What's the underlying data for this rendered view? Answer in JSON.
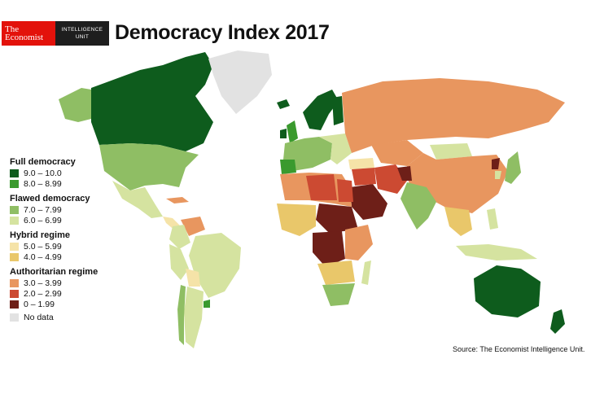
{
  "logo": {
    "brand_line1": "The",
    "brand_line2": "Economist",
    "unit_line1": "INTELLIGENCE",
    "unit_line2": "UNIT"
  },
  "title": "Democracy Index 2017",
  "legend": {
    "groups": [
      {
        "heading": "Full democracy",
        "items": [
          {
            "label": "9.0 – 10.0",
            "color": "#0e5c1d"
          },
          {
            "label": "8.0 – 8.99",
            "color": "#3a9a2e"
          }
        ]
      },
      {
        "heading": "Flawed democracy",
        "items": [
          {
            "label": "7.0 – 7.99",
            "color": "#8fbe64"
          },
          {
            "label": "6.0 – 6.99",
            "color": "#d5e3a0"
          }
        ]
      },
      {
        "heading": "Hybrid regime",
        "items": [
          {
            "label": "5.0 – 5.99",
            "color": "#f5e3a8"
          },
          {
            "label": "4.0 – 4.99",
            "color": "#e9c76a"
          }
        ]
      },
      {
        "heading": "Authoritarian regime",
        "items": [
          {
            "label": "3.0 – 3.99",
            "color": "#e8965f"
          },
          {
            "label": "2.0 – 2.99",
            "color": "#cc4a32"
          },
          {
            "label": "0 – 1.99",
            "color": "#6e1f18"
          }
        ]
      }
    ],
    "no_data": {
      "label": "No data",
      "color": "#e2e2e2"
    }
  },
  "source": "Source: The Economist Intelligence Unit."
}
